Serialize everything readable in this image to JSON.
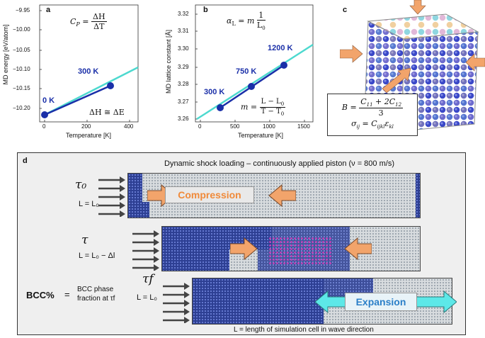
{
  "panel_a": {
    "label": "a",
    "ylabel": "MD energy [eV/atom]",
    "xlabel": "Temperature [K]",
    "yticks": [
      "−9.95",
      "−10.00",
      "−10.05",
      "−10.10",
      "−10.15",
      "−10.20"
    ],
    "xticks": [
      "0",
      "200",
      "400"
    ],
    "points": [
      {
        "label": "0 K",
        "x": 0,
        "y": -10.21
      },
      {
        "label": "300 K",
        "x": 300,
        "y": -10.135
      }
    ],
    "eq_top": "C_P = ΔH / ΔT",
    "eq_bottom": "ΔH ≅ ΔE"
  },
  "panel_b": {
    "label": "b",
    "ylabel": "MD lattice constant [Å]",
    "xlabel": "Temperature [K]",
    "yticks": [
      "3.32",
      "3.31",
      "3.30",
      "3.29",
      "3.28",
      "3.27",
      "3.26"
    ],
    "xticks": [
      "0",
      "500",
      "1000",
      "1500"
    ],
    "points": [
      {
        "label": "300 K",
        "x": 300,
        "y": 3.267
      },
      {
        "label": "750 K",
        "x": 750,
        "y": 3.279
      },
      {
        "label": "1200 K",
        "x": 1200,
        "y": 3.291
      }
    ],
    "eq_top": "α_L = m · 1/L₀",
    "eq_bottom": "m = (L − L₀)/(T − T₀)"
  },
  "panel_c": {
    "label": "c",
    "eq1": "B = (C₁₁ + 2C₁₂) / 3",
    "eq2": "σᵢⱼ = Cᵢⱼₖₗ εₖₗ"
  },
  "panel_d": {
    "label": "d",
    "title": "Dynamic shock loading – continuously applied piston (ν = 800 m/s)",
    "row1_tau": "τ₀",
    "row1_len": "L = L₀",
    "compression": "Compression",
    "row2_tau": "τ",
    "row2_len": "L = L₀ − Δl",
    "bcc_title": "BCC%",
    "eq_sign": "=",
    "bcc_desc": "BCC phase fraction at τf",
    "row3_tau": "τf",
    "row3_len": "L = L₀",
    "expansion": "Expansion",
    "footer": "L = length of simulation cell in wave direction"
  },
  "colors": {
    "accent": "#1a2fa8",
    "fit_line": "#4dd9cf",
    "arrow": "#f2a46b",
    "cyan_arrow": "#5de8e8"
  }
}
